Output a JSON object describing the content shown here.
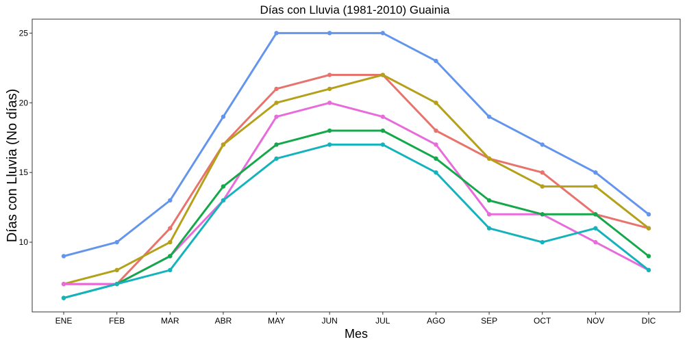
{
  "chart_data": {
    "type": "line",
    "title": "Días con Lluvia (1981-2010)  Guainia",
    "xlabel": "Mes",
    "ylabel": "Días con Lluvia (No días)",
    "categories": [
      "ENE",
      "FEB",
      "MAR",
      "ABR",
      "MAY",
      "JUN",
      "JUL",
      "AGO",
      "SEP",
      "OCT",
      "NOV",
      "DIC"
    ],
    "ylim": [
      5,
      26
    ],
    "yticks": [
      10,
      15,
      20,
      25
    ],
    "grid": false,
    "legend": "none",
    "series": [
      {
        "color": "#6495ED",
        "values": [
          9,
          10,
          13,
          19,
          25,
          25,
          25,
          23,
          19,
          17,
          15,
          12
        ]
      },
      {
        "color": "#E8736C",
        "values": [
          7,
          7,
          11,
          17,
          21,
          22,
          22,
          18,
          16,
          15,
          12,
          11
        ]
      },
      {
        "color": "#B5A01A",
        "values": [
          7,
          8,
          10,
          17,
          20,
          21,
          22,
          20,
          16,
          14,
          14,
          11
        ]
      },
      {
        "color": "#E76BDB",
        "values": [
          7,
          7,
          9,
          13,
          19,
          20,
          19,
          17,
          12,
          12,
          10,
          8
        ]
      },
      {
        "color": "#14A84A",
        "values": [
          6,
          7,
          9,
          14,
          17,
          18,
          18,
          16,
          13,
          12,
          12,
          9
        ]
      },
      {
        "color": "#14B3BC",
        "values": [
          6,
          7,
          8,
          13,
          16,
          17,
          17,
          15,
          11,
          10,
          11,
          8
        ]
      }
    ]
  }
}
